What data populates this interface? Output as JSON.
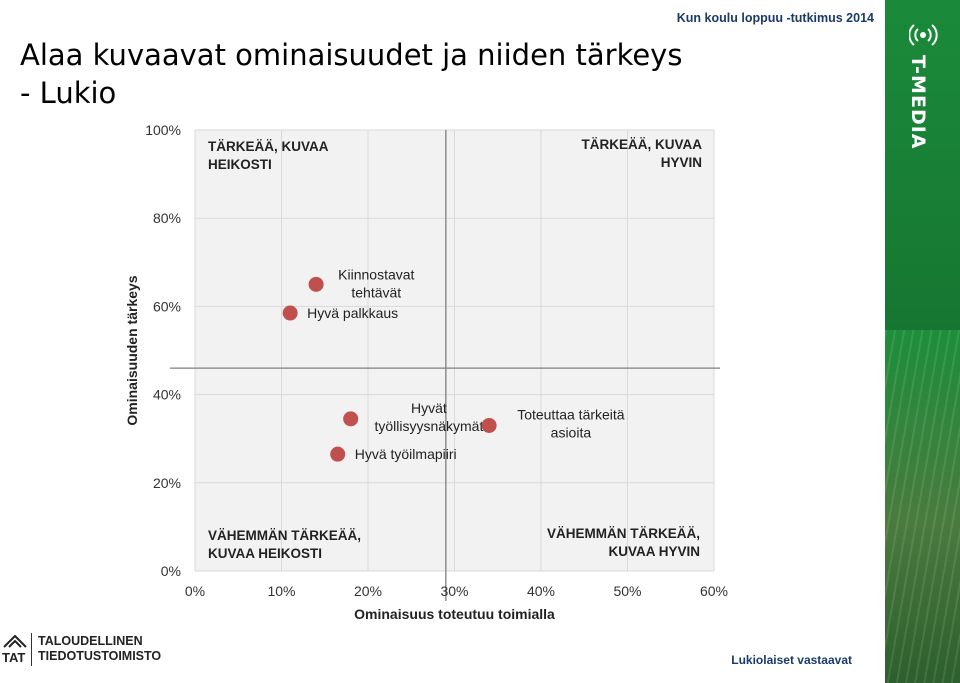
{
  "slide": {
    "title": "Alaa kuvaavat ominaisuudet ja niiden tärkeys\n- Lukio",
    "header_note": "Kun koulu loppuu -tutkimus 2014",
    "footer_note": "Lukiolaiset vastaavat",
    "brand": "T-MEDIA",
    "logo": {
      "short": "TAT",
      "name": "TALOUDELLINEN\nTIEDOTUSTOIMISTO"
    }
  },
  "colors": {
    "plot_bg": "#f2f2f2",
    "grid": "#d9d9d9",
    "axis_line": "#7f7f7f",
    "marker": "#c0504d",
    "brand_green": "#177a33",
    "text_dark": "#1a3a6b"
  },
  "chart_data": {
    "type": "scatter",
    "xlabel": "Ominaisuus toteutuu toimialla",
    "ylabel": "Ominaisuuden tärkeys",
    "xlim": [
      0,
      60
    ],
    "ylim": [
      0,
      100
    ],
    "x_ticks": [
      "0%",
      "10%",
      "20%",
      "30%",
      "40%",
      "50%",
      "60%"
    ],
    "y_ticks": [
      "0%",
      "20%",
      "40%",
      "60%",
      "80%",
      "100%"
    ],
    "grid": "vertical and horizontal major gridlines",
    "divider": {
      "x": 29,
      "y": 46
    },
    "quadrant_labels": [
      {
        "text": "TÄRKEÄÄ, KUVAA\nHEIKOSTI",
        "position": "top-left"
      },
      {
        "text": "TÄRKEÄÄ, KUVAA\nHYVIN",
        "position": "top-right"
      },
      {
        "text": "VÄHEMMÄN TÄRKEÄÄ,\nKUVAA HEIKOSTI",
        "position": "bottom-left"
      },
      {
        "text": "VÄHEMMÄN TÄRKEÄÄ,\nKUVAA HYVIN",
        "position": "bottom-right"
      }
    ],
    "points": [
      {
        "label": "Kiinnostavat\ntehtävät",
        "x": 14,
        "y": 65,
        "label_side": "right-above"
      },
      {
        "label": "Hyvä palkkaus",
        "x": 11,
        "y": 58.5,
        "label_side": "right"
      },
      {
        "label": "Hyvät\ntyöllisyysnäkymät",
        "x": 18,
        "y": 34.5,
        "label_side": "right"
      },
      {
        "label": "Toteuttaa tärkeitä\nasioita",
        "x": 34,
        "y": 33,
        "label_side": "right"
      },
      {
        "label": "Hyvä työilmapiiri",
        "x": 16.5,
        "y": 26.5,
        "label_side": "right"
      }
    ]
  }
}
